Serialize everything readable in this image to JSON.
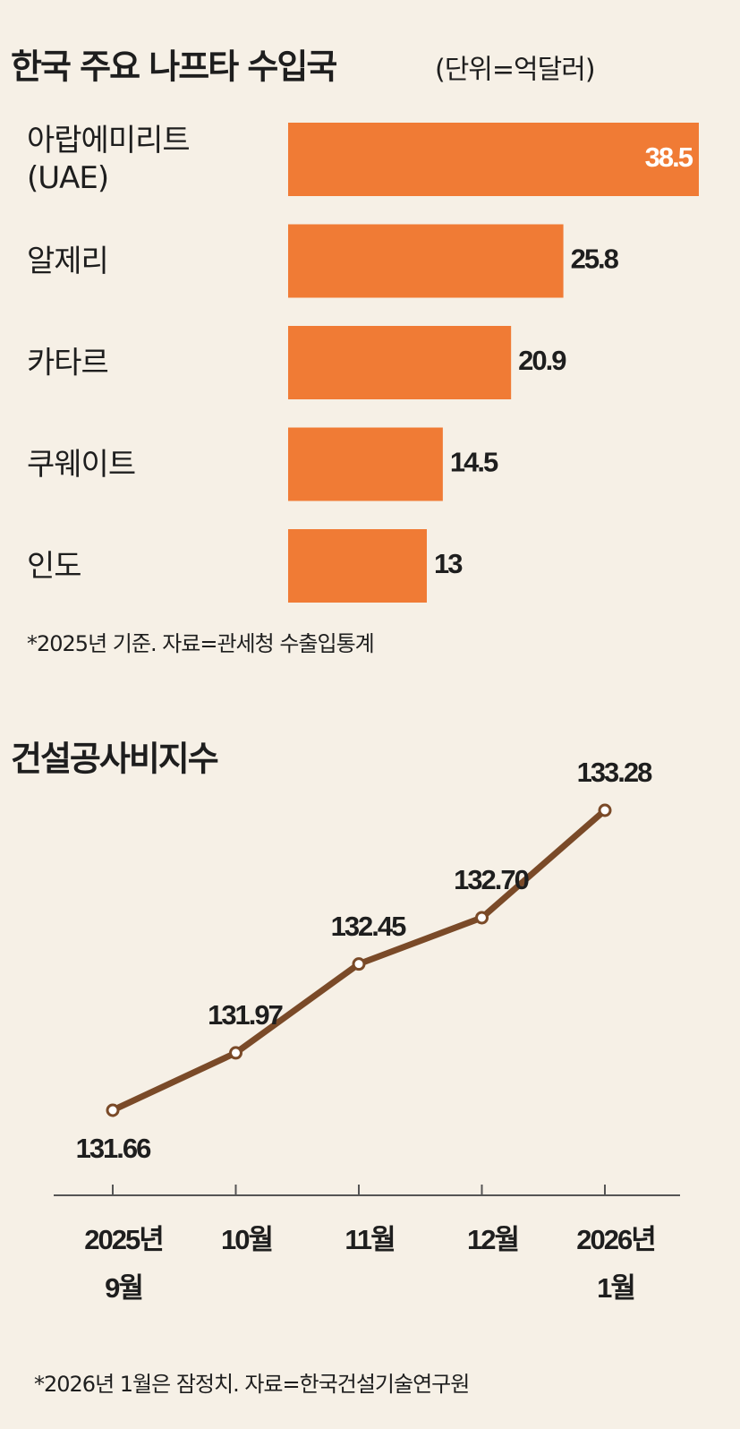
{
  "chart_data": [
    {
      "type": "hbar",
      "title": "한국 주요 나프타 수입국",
      "subtitle": "(단위=억달러)",
      "categories": [
        "아랍에미리트\n(UAE)",
        "알제리",
        "카타르",
        "쿠웨이트",
        "인도"
      ],
      "values": [
        38.5,
        25.8,
        20.9,
        14.5,
        13
      ],
      "color": "#f07b35",
      "note": "*2025년 기준. 자료=관세청 수출입통계"
    },
    {
      "type": "line",
      "title": "건설공사비지수",
      "categories": [
        "2025년\n9월",
        "10월",
        "11월",
        "12월",
        "2026년\n1월"
      ],
      "values": [
        131.66,
        131.97,
        132.45,
        132.7,
        133.28
      ],
      "value_labels": [
        "131.66",
        "131.97",
        "132.45",
        "132.70",
        "133.28"
      ],
      "color": "#7a4a28",
      "note": "*2026년 1월은 잠정치. 자료=한국건설기술연구원"
    }
  ]
}
